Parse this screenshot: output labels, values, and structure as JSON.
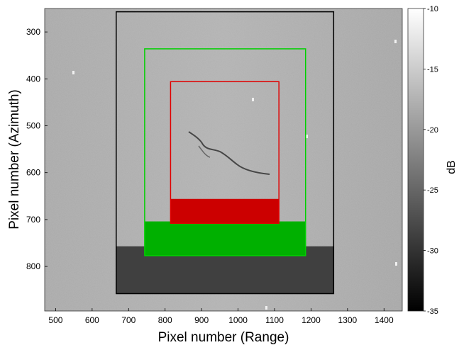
{
  "chart_data": {
    "type": "heatmap",
    "xlabel": "Pixel number (Range)",
    "ylabel": "Pixel number (Azimuth)",
    "xlim": [
      470,
      1450
    ],
    "ylim": [
      895,
      250
    ],
    "x_ticks": [
      500,
      600,
      700,
      800,
      900,
      1000,
      1100,
      1200,
      1300,
      1400
    ],
    "y_ticks": [
      300,
      400,
      500,
      600,
      700,
      800
    ],
    "colorbar": {
      "label": "dB",
      "range": [
        -35,
        -10
      ],
      "ticks": [
        -10,
        -15,
        -20,
        -25,
        -30,
        -35
      ],
      "colormap": "gray"
    },
    "boxes": [
      {
        "color": "#000000",
        "x": [
          666,
          1262
        ],
        "y": [
          257,
          858
        ],
        "filled_band": {
          "y": [
            757,
            858
          ],
          "fill": "#404040"
        }
      },
      {
        "color": "#00d000",
        "x": [
          744,
          1185
        ],
        "y": [
          336,
          777
        ],
        "filled_band": {
          "y": [
            704,
            777
          ],
          "fill": "#00b000"
        }
      },
      {
        "color": "#e00000",
        "x": [
          815,
          1112
        ],
        "y": [
          406,
          708
        ],
        "filled_band": {
          "y": [
            656,
            708
          ],
          "fill": "#cc0000"
        }
      }
    ]
  }
}
